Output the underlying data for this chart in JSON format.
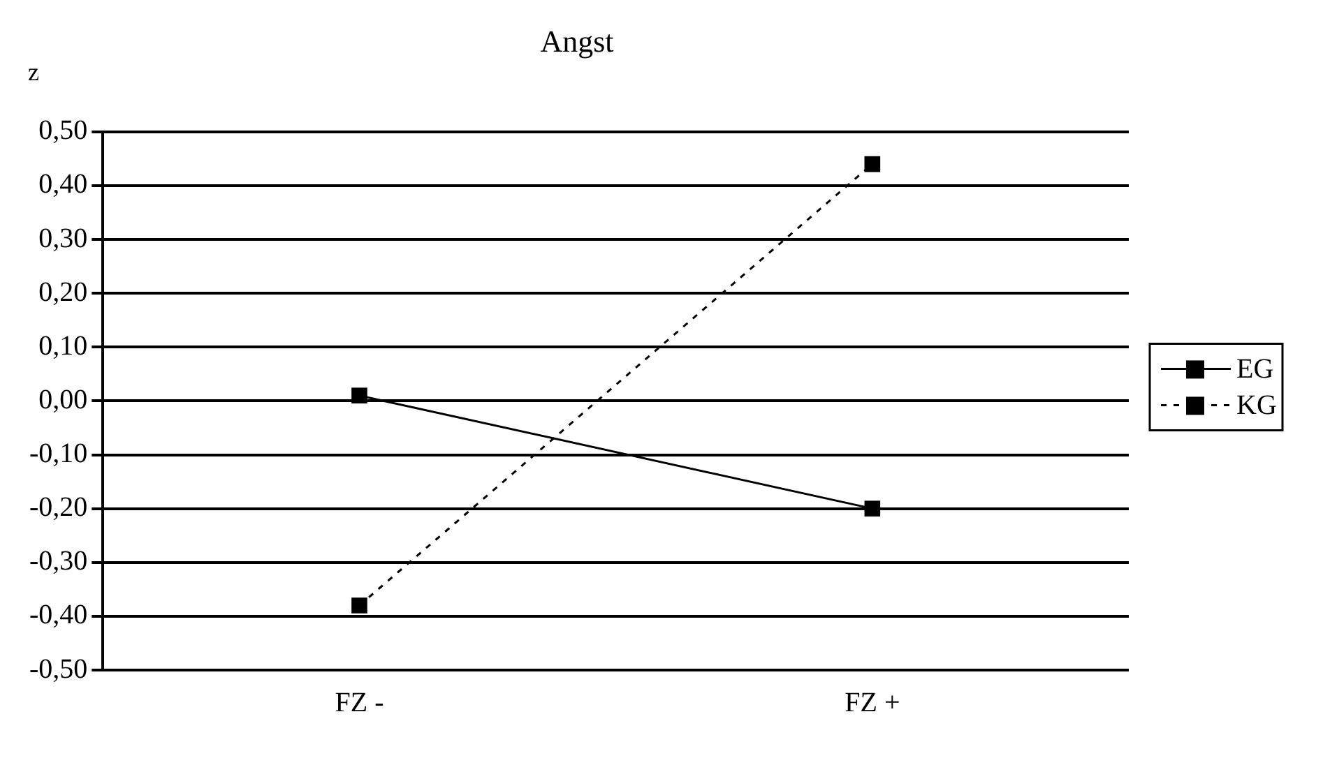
{
  "chart_data": {
    "type": "line",
    "title": "Angst",
    "ylabel": "z",
    "categories": [
      "FZ -",
      "FZ +"
    ],
    "series": [
      {
        "name": "EG",
        "color": "#000000",
        "values": [
          0.01,
          -0.2
        ],
        "line_style": "solid"
      },
      {
        "name": "KG",
        "color": "#000000",
        "values": [
          -0.38,
          0.44
        ],
        "line_style": "dashed"
      }
    ],
    "ylim": [
      -0.5,
      0.5
    ],
    "yticks": [
      {
        "value": -0.5,
        "label": "-0,50"
      },
      {
        "value": -0.4,
        "label": "-0,40"
      },
      {
        "value": -0.3,
        "label": "-0,30"
      },
      {
        "value": -0.2,
        "label": "-0,20"
      },
      {
        "value": -0.1,
        "label": "-0,10"
      },
      {
        "value": 0,
        "label": "0,00"
      },
      {
        "value": 0.1,
        "label": "0,10"
      },
      {
        "value": 0.2,
        "label": "0,20"
      },
      {
        "value": 0.3,
        "label": "0,30"
      },
      {
        "value": 0.4,
        "label": "0,40"
      },
      {
        "value": 0.5,
        "label": "0,50"
      }
    ],
    "grid": "y",
    "legend": "right",
    "marker": "square"
  }
}
